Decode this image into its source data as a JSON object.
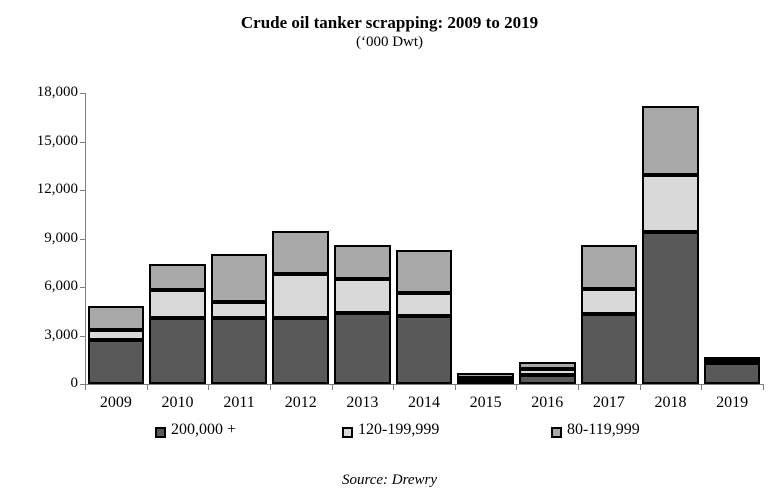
{
  "title": "Crude oil tanker scrapping: 2009 to 2019",
  "subtitle": "(‘000 Dwt)",
  "source": "Source: Drewry",
  "colors": {
    "segment_200k": "#595959",
    "segment_120_199k": "#d9d9d9",
    "segment_80_119k": "#a9a9a9",
    "axis": "#808080",
    "bar_border": "#000000"
  },
  "chart_data": {
    "type": "bar",
    "stacked": true,
    "title": "Crude oil tanker scrapping: 2009 to 2019",
    "subtitle": "('000 Dwt)",
    "xlabel": "",
    "ylabel": "'000 Dwt",
    "ylim": [
      0,
      18000
    ],
    "y_tick_labels": [
      "18,000",
      "15,000",
      "12,000",
      "9,000",
      "6,000",
      "3,000",
      "0"
    ],
    "grid": false,
    "legend_position": "bottom",
    "source": "Source: Drewry",
    "categories": [
      "2009",
      "2010",
      "2011",
      "2012",
      "2013",
      "2014",
      "2015",
      "2016",
      "2017",
      "2018",
      "2019"
    ],
    "series": [
      {
        "name": "200,000 +",
        "color": "#595959",
        "values": [
          2700,
          4100,
          4100,
          4100,
          4400,
          4200,
          250,
          550,
          4300,
          9400,
          1300
        ]
      },
      {
        "name": "120-199,999",
        "color": "#d9d9d9",
        "values": [
          650,
          1700,
          1000,
          2700,
          2100,
          1400,
          150,
          400,
          1550,
          3500,
          250
        ]
      },
      {
        "name": "80-119,999",
        "color": "#a9a9a9",
        "values": [
          1500,
          1600,
          2950,
          2650,
          2100,
          2700,
          250,
          400,
          2750,
          4300,
          150
        ]
      }
    ],
    "totals": [
      4850,
      7400,
      8050,
      9450,
      8600,
      8300,
      650,
      1350,
      8600,
      17200,
      1700
    ]
  },
  "legend": {
    "items": [
      {
        "label": "200,000 +"
      },
      {
        "label": "120-199,999"
      },
      {
        "label": "80-119,999"
      }
    ]
  }
}
